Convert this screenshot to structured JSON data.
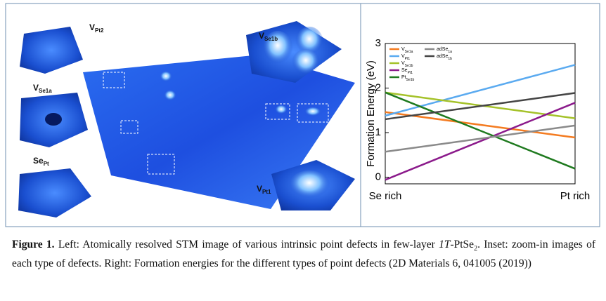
{
  "figure": {
    "insets": [
      {
        "main": "V",
        "sub": "Pt2"
      },
      {
        "main": "V",
        "sub": "Se1b"
      },
      {
        "main": "V",
        "sub": "Se1a"
      },
      {
        "main": "Se",
        "sub": "Pt"
      },
      {
        "main": "V",
        "sub": "Pt1"
      }
    ]
  },
  "chart_data": {
    "type": "line",
    "y_label": "Formation Energy (eV)",
    "categories": [
      "Se rich",
      "Pt rich"
    ],
    "ylim": [
      -0.15,
      3
    ],
    "yticks": [
      0,
      1,
      2,
      3
    ],
    "legend": "upper left",
    "series": [
      {
        "name": "V",
        "sub": "Se1a",
        "color": "#f47b20",
        "values": [
          1.46,
          0.89
        ]
      },
      {
        "name": "V",
        "sub": "Pt1",
        "color": "#5aaaf0",
        "values": [
          1.38,
          2.52
        ]
      },
      {
        "name": "V",
        "sub": "Se1b",
        "color": "#a5c22a",
        "values": [
          1.9,
          1.32
        ]
      },
      {
        "name": "Se",
        "sub": "Pt1",
        "color": "#8b1a8b",
        "values": [
          -0.06,
          1.67
        ]
      },
      {
        "name": "Pt",
        "sub": "Se1b",
        "color": "#1f7a1f",
        "values": [
          1.9,
          0.19
        ]
      },
      {
        "name": "adSe",
        "sub": "1a",
        "color": "#8a8a8a",
        "values": [
          0.57,
          1.16
        ]
      },
      {
        "name": "adSe",
        "sub": "1b",
        "color": "#444444",
        "values": [
          1.3,
          1.89
        ]
      }
    ]
  },
  "caption": {
    "label": "Figure 1.",
    "text1": " Left: Atomically resolved STM image of various intrinsic point defects in few-layer ",
    "italic": "1T",
    "text2": "-PtSe",
    "sub": "2",
    "text3": ". Inset: zoom-in images of each type of defects. Right: Formation energies for the different types of point defects (2D Materials 6, 041005 (2019))"
  }
}
